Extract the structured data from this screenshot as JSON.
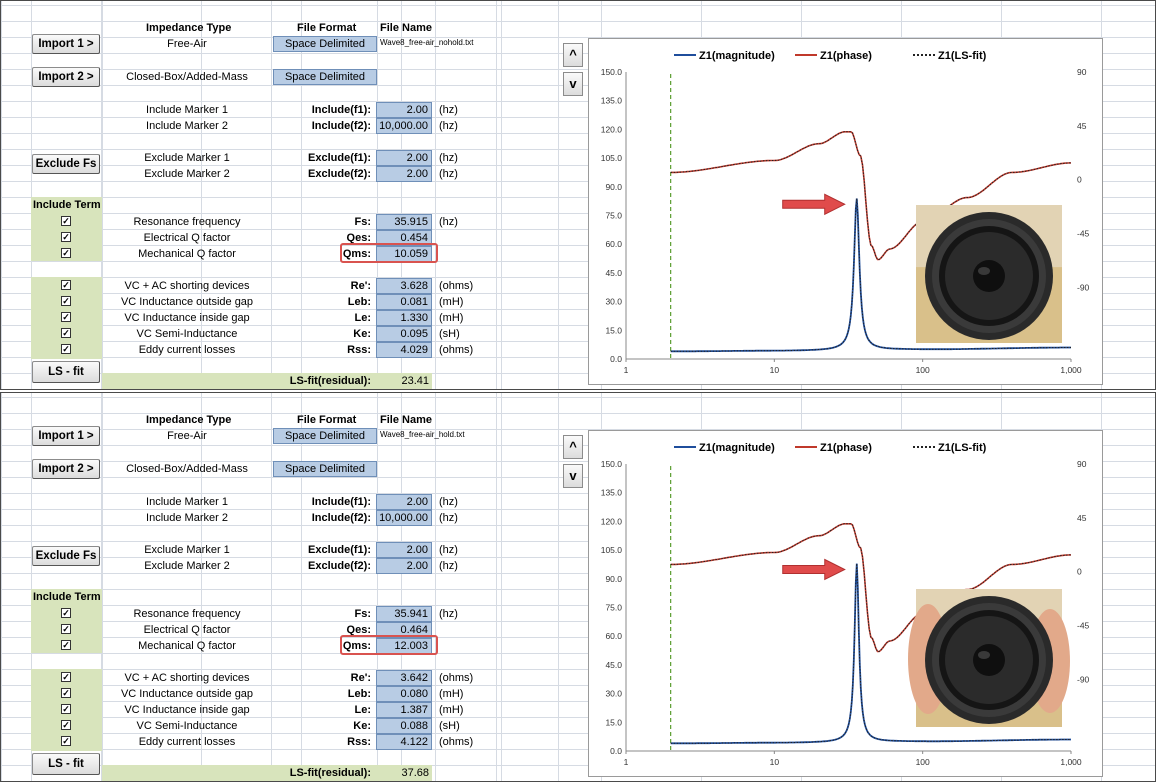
{
  "panels": [
    {
      "headers": {
        "impedance_type": "Impedance Type",
        "file_format": "File Format",
        "file_name": "File Name"
      },
      "import1": {
        "label": "Import 1 >",
        "type": "Free-Air",
        "format": "Space Delimited",
        "file": "Wave8_free-air_nohold.txt"
      },
      "import2": {
        "label": "Import 2 >",
        "type": "Closed-Box/Added-Mass",
        "format": "Space Delimited"
      },
      "include_markers": [
        {
          "label": "Include Marker 1",
          "key": "Include(f1):",
          "value": "2.00",
          "unit": "(hz)"
        },
        {
          "label": "Include Marker 2",
          "key": "Include(f2):",
          "value": "10,000.00",
          "unit": "(hz)"
        }
      ],
      "exclude_button": "Exclude Fs",
      "exclude_markers": [
        {
          "label": "Exclude Marker 1",
          "key": "Exclude(f1):",
          "value": "2.00",
          "unit": "(hz)"
        },
        {
          "label": "Exclude Marker 2",
          "key": "Exclude(f2):",
          "value": "2.00",
          "unit": "(hz)"
        }
      ],
      "include_term_header": "Include Term",
      "terms_a": [
        {
          "label": "Resonance frequency",
          "key": "Fs:",
          "value": "35.915",
          "unit": "(hz)",
          "checked": true
        },
        {
          "label": "Electrical Q factor",
          "key": "Qes:",
          "value": "0.454",
          "unit": "",
          "checked": true
        },
        {
          "label": "Mechanical Q factor",
          "key": "Qms:",
          "value": "10.059",
          "unit": "",
          "checked": true
        }
      ],
      "terms_b": [
        {
          "label": "VC + AC shorting devices",
          "key": "Re':",
          "value": "3.628",
          "unit": "(ohms)",
          "checked": true
        },
        {
          "label": "VC Inductance outside gap",
          "key": "Leb:",
          "value": "0.081",
          "unit": "(mH)",
          "checked": true
        },
        {
          "label": "VC Inductance inside gap",
          "key": "Le:",
          "value": "1.330",
          "unit": "(mH)",
          "checked": true
        },
        {
          "label": "VC Semi-Inductance",
          "key": "Ke:",
          "value": "0.095",
          "unit": "(sH)",
          "checked": true
        },
        {
          "label": "Eddy current losses",
          "key": "Rss:",
          "value": "4.029",
          "unit": "(ohms)",
          "checked": true
        }
      ],
      "lsfit_button": "LS - fit",
      "residual_label": "LS-fit(residual):",
      "residual_value": "23.41",
      "nav_up": "^",
      "nav_down": "v"
    },
    {
      "headers": {
        "impedance_type": "Impedance Type",
        "file_format": "File Format",
        "file_name": "File Name"
      },
      "import1": {
        "label": "Import 1 >",
        "type": "Free-Air",
        "format": "Space Delimited",
        "file": "Wave8_free-air_hold.txt"
      },
      "import2": {
        "label": "Import 2 >",
        "type": "Closed-Box/Added-Mass",
        "format": "Space Delimited"
      },
      "include_markers": [
        {
          "label": "Include Marker 1",
          "key": "Include(f1):",
          "value": "2.00",
          "unit": "(hz)"
        },
        {
          "label": "Include Marker 2",
          "key": "Include(f2):",
          "value": "10,000.00",
          "unit": "(hz)"
        }
      ],
      "exclude_button": "Exclude Fs",
      "exclude_markers": [
        {
          "label": "Exclude Marker 1",
          "key": "Exclude(f1):",
          "value": "2.00",
          "unit": "(hz)"
        },
        {
          "label": "Exclude Marker 2",
          "key": "Exclude(f2):",
          "value": "2.00",
          "unit": "(hz)"
        }
      ],
      "include_term_header": "Include Term",
      "terms_a": [
        {
          "label": "Resonance frequency",
          "key": "Fs:",
          "value": "35.941",
          "unit": "(hz)",
          "checked": true
        },
        {
          "label": "Electrical Q factor",
          "key": "Qes:",
          "value": "0.464",
          "unit": "",
          "checked": true
        },
        {
          "label": "Mechanical Q factor",
          "key": "Qms:",
          "value": "12.003",
          "unit": "",
          "checked": true
        }
      ],
      "terms_b": [
        {
          "label": "VC + AC shorting devices",
          "key": "Re':",
          "value": "3.642",
          "unit": "(ohms)",
          "checked": true
        },
        {
          "label": "VC Inductance outside gap",
          "key": "Leb:",
          "value": "0.080",
          "unit": "(mH)",
          "checked": true
        },
        {
          "label": "VC Inductance inside gap",
          "key": "Le:",
          "value": "1.387",
          "unit": "(mH)",
          "checked": true
        },
        {
          "label": "VC Semi-Inductance",
          "key": "Ke:",
          "value": "0.088",
          "unit": "(sH)",
          "checked": true
        },
        {
          "label": "Eddy current losses",
          "key": "Rss:",
          "value": "4.122",
          "unit": "(ohms)",
          "checked": true
        }
      ],
      "lsfit_button": "LS - fit",
      "residual_label": "LS-fit(residual):",
      "residual_value": "37.68",
      "nav_up": "^",
      "nav_down": "v"
    }
  ],
  "chart_data": [
    {
      "type": "line",
      "legend": [
        "Z1(magnitude)",
        "Z1(phase)",
        "Z1(LS-fit)"
      ],
      "legend_position": "top",
      "x_scale": "log",
      "xlim": [
        1,
        1000
      ],
      "x_ticks": [
        "1",
        "10",
        "100",
        "1,000"
      ],
      "ylim": [
        0,
        150
      ],
      "y_ticks": [
        "0.0",
        "15.0",
        "30.0",
        "45.0",
        "60.0",
        "75.0",
        "90.0",
        "105.0",
        "120.0",
        "135.0",
        "150.0"
      ],
      "y2lim": [
        -150,
        90
      ],
      "y2_ticks": [
        "90",
        "45",
        "0",
        "-45",
        "-90"
      ],
      "marker_freq": 2,
      "fs": 35.915,
      "qms": 10.059,
      "qes": 0.454,
      "re": 3.628,
      "peak": 84,
      "phase_points": [
        [
          2,
          6
        ],
        [
          10,
          16
        ],
        [
          20,
          30
        ],
        [
          30,
          40
        ],
        [
          33,
          40
        ],
        [
          38,
          20
        ],
        [
          45,
          -55
        ],
        [
          50,
          -67
        ],
        [
          60,
          -58
        ],
        [
          100,
          -35
        ],
        [
          200,
          -15
        ],
        [
          400,
          6
        ],
        [
          1000,
          14
        ]
      ],
      "magnitude_tail": [
        [
          2,
          4
        ],
        [
          10,
          4.3
        ],
        [
          100,
          5
        ],
        [
          1000,
          6
        ]
      ],
      "colors": {
        "magnitude": "#1f4e9c",
        "phase": "#c0392b",
        "fit": "#222222",
        "marker": "#5a9e2f",
        "arrow": "#e04b4b"
      }
    },
    {
      "type": "line",
      "legend": [
        "Z1(magnitude)",
        "Z1(phase)",
        "Z1(LS-fit)"
      ],
      "legend_position": "top",
      "x_scale": "log",
      "xlim": [
        1,
        1000
      ],
      "x_ticks": [
        "1",
        "10",
        "100",
        "1,000"
      ],
      "ylim": [
        0,
        150
      ],
      "y_ticks": [
        "0.0",
        "15.0",
        "30.0",
        "45.0",
        "60.0",
        "75.0",
        "90.0",
        "105.0",
        "120.0",
        "135.0",
        "150.0"
      ],
      "y2lim": [
        -150,
        90
      ],
      "y2_ticks": [
        "90",
        "45",
        "0",
        "-45",
        "-90"
      ],
      "marker_freq": 2,
      "fs": 35.941,
      "qms": 12.003,
      "qes": 0.464,
      "re": 3.642,
      "peak": 98,
      "phase_points": [
        [
          2,
          6
        ],
        [
          10,
          16
        ],
        [
          20,
          30
        ],
        [
          30,
          40
        ],
        [
          33,
          40
        ],
        [
          38,
          20
        ],
        [
          45,
          -55
        ],
        [
          50,
          -67
        ],
        [
          60,
          -58
        ],
        [
          100,
          -35
        ],
        [
          200,
          -15
        ],
        [
          400,
          6
        ],
        [
          1000,
          14
        ]
      ],
      "magnitude_tail": [
        [
          2,
          4
        ],
        [
          10,
          4.3
        ],
        [
          100,
          5
        ],
        [
          1000,
          6
        ]
      ],
      "colors": {
        "magnitude": "#1f4e9c",
        "phase": "#c0392b",
        "fit": "#222222",
        "marker": "#5a9e2f",
        "arrow": "#e04b4b"
      }
    }
  ]
}
